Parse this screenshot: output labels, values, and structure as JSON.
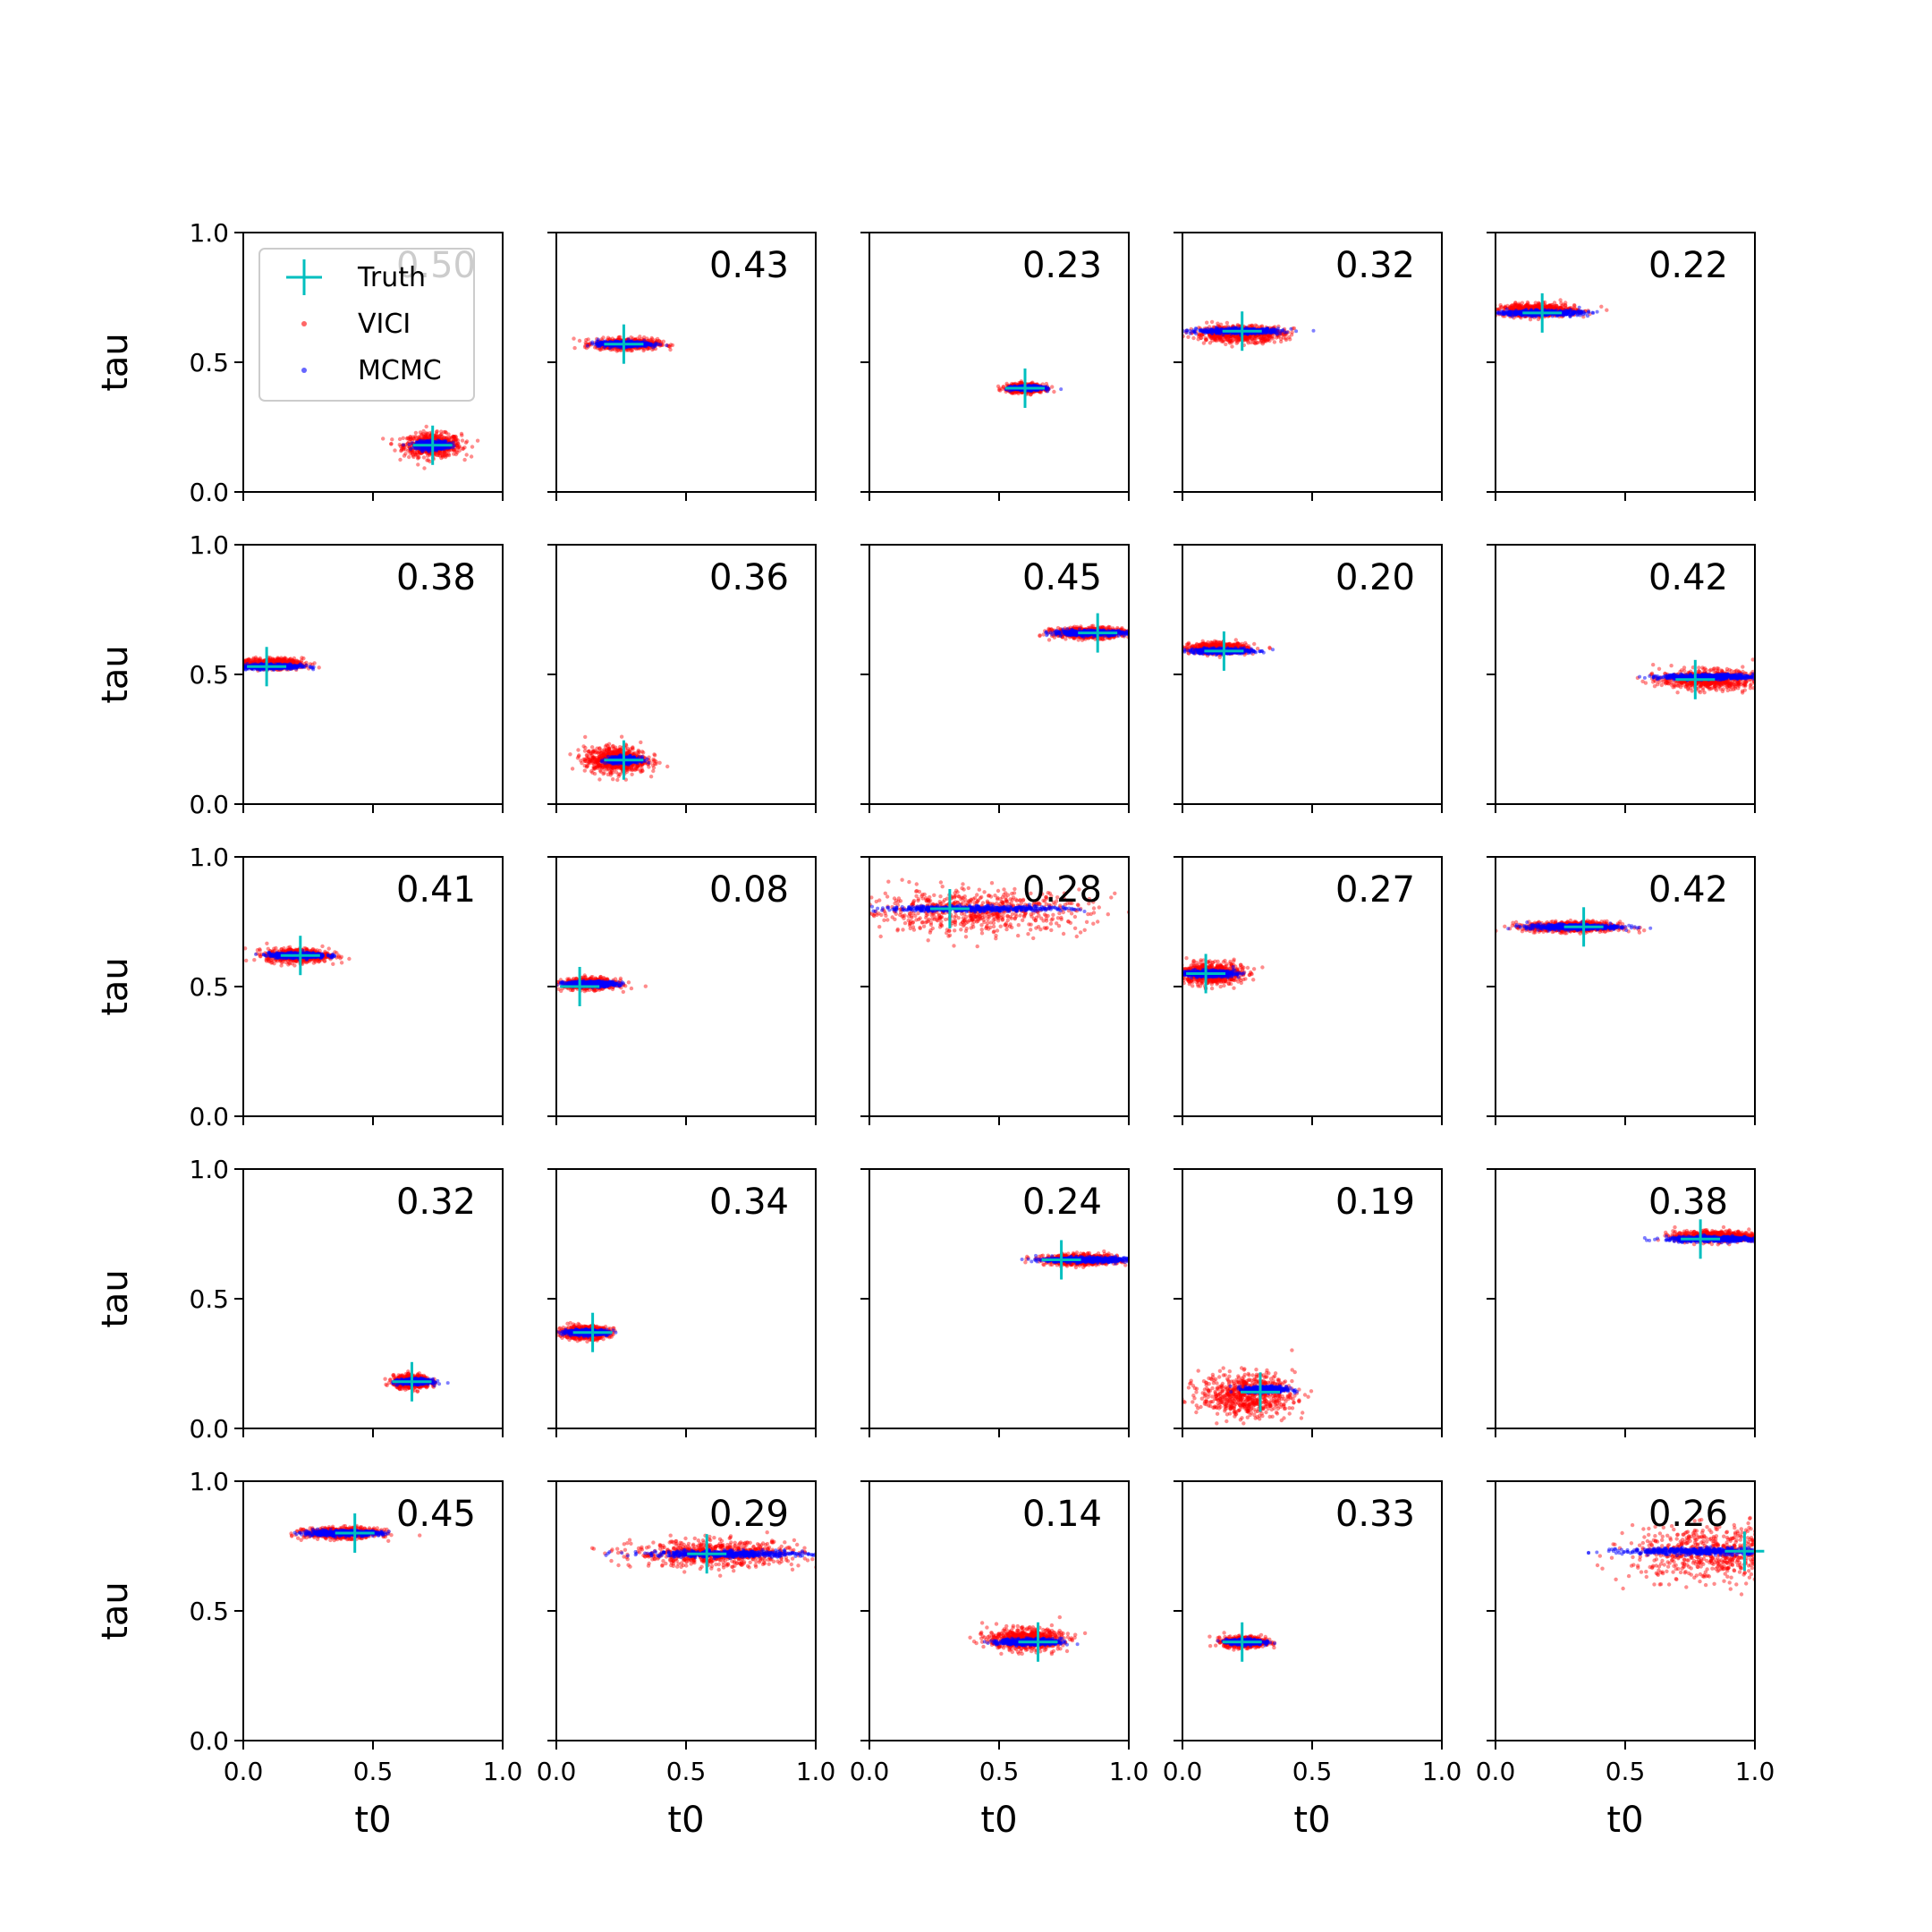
{
  "chart_data": {
    "type": "scatter",
    "layout": {
      "rows": 5,
      "cols": 5
    },
    "xlabel": "t0",
    "ylabel": "tau",
    "xlim": [
      0,
      1
    ],
    "ylim": [
      0,
      1
    ],
    "xticks": [
      "0.0",
      "0.5",
      "1.0"
    ],
    "yticks": [
      "0.0",
      "0.5",
      "1.0"
    ],
    "colors": {
      "truth": "#00bfbf",
      "vici": "#ff0000",
      "mcmc": "#0000ff"
    },
    "legend": {
      "position": "upper-left of first panel",
      "entries": [
        {
          "name": "Truth",
          "marker": "plus",
          "color": "#00bfbf"
        },
        {
          "name": "VICI",
          "marker": "dot",
          "color": "#ff0000"
        },
        {
          "name": "MCMC",
          "marker": "dot",
          "color": "#0000ff"
        }
      ]
    },
    "panels": [
      {
        "score": "0.50",
        "truth": [
          0.73,
          0.18
        ],
        "vici": {
          "center": [
            0.73,
            0.18
          ],
          "spread": [
            0.055,
            0.022
          ]
        },
        "mcmc": {
          "center": [
            0.73,
            0.18
          ],
          "spread": [
            0.03,
            0.008
          ]
        }
      },
      {
        "score": "0.43",
        "truth": [
          0.26,
          0.57
        ],
        "vici": {
          "center": [
            0.27,
            0.57
          ],
          "spread": [
            0.06,
            0.01
          ]
        },
        "mcmc": {
          "center": [
            0.26,
            0.57
          ],
          "spread": [
            0.05,
            0.005
          ]
        }
      },
      {
        "score": "0.23",
        "truth": [
          0.6,
          0.4
        ],
        "vici": {
          "center": [
            0.6,
            0.4
          ],
          "spread": [
            0.035,
            0.008
          ]
        },
        "mcmc": {
          "center": [
            0.61,
            0.4
          ],
          "spread": [
            0.03,
            0.004
          ]
        }
      },
      {
        "score": "0.32",
        "truth": [
          0.23,
          0.62
        ],
        "vici": {
          "center": [
            0.22,
            0.61
          ],
          "spread": [
            0.085,
            0.015
          ]
        },
        "mcmc": {
          "center": [
            0.22,
            0.62
          ],
          "spread": [
            0.08,
            0.005
          ]
        }
      },
      {
        "score": "0.22",
        "truth": [
          0.18,
          0.69
        ],
        "vici": {
          "center": [
            0.16,
            0.7
          ],
          "spread": [
            0.075,
            0.012
          ]
        },
        "mcmc": {
          "center": [
            0.17,
            0.69
          ],
          "spread": [
            0.08,
            0.005
          ]
        }
      },
      {
        "score": "0.38",
        "truth": [
          0.09,
          0.53
        ],
        "vici": {
          "center": [
            0.11,
            0.54
          ],
          "spread": [
            0.06,
            0.01
          ]
        },
        "mcmc": {
          "center": [
            0.1,
            0.53
          ],
          "spread": [
            0.06,
            0.005
          ]
        }
      },
      {
        "score": "0.36",
        "truth": [
          0.26,
          0.17
        ],
        "vici": {
          "center": [
            0.23,
            0.17
          ],
          "spread": [
            0.06,
            0.025
          ]
        },
        "mcmc": {
          "center": [
            0.26,
            0.17
          ],
          "spread": [
            0.03,
            0.006
          ]
        }
      },
      {
        "score": "0.45",
        "truth": [
          0.88,
          0.66
        ],
        "vici": {
          "center": [
            0.85,
            0.66
          ],
          "spread": [
            0.07,
            0.01
          ]
        },
        "mcmc": {
          "center": [
            0.85,
            0.66
          ],
          "spread": [
            0.07,
            0.005
          ]
        }
      },
      {
        "score": "0.20",
        "truth": [
          0.16,
          0.59
        ],
        "vici": {
          "center": [
            0.14,
            0.6
          ],
          "spread": [
            0.055,
            0.01
          ]
        },
        "mcmc": {
          "center": [
            0.15,
            0.59
          ],
          "spread": [
            0.06,
            0.005
          ]
        }
      },
      {
        "score": "0.42",
        "truth": [
          0.77,
          0.48
        ],
        "vici": {
          "center": [
            0.82,
            0.48
          ],
          "spread": [
            0.09,
            0.018
          ]
        },
        "mcmc": {
          "center": [
            0.82,
            0.49
          ],
          "spread": [
            0.09,
            0.005
          ]
        }
      },
      {
        "score": "0.41",
        "truth": [
          0.22,
          0.62
        ],
        "vici": {
          "center": [
            0.21,
            0.62
          ],
          "spread": [
            0.06,
            0.013
          ]
        },
        "mcmc": {
          "center": [
            0.21,
            0.62
          ],
          "spread": [
            0.055,
            0.005
          ]
        }
      },
      {
        "score": "0.08",
        "truth": [
          0.09,
          0.5
        ],
        "vici": {
          "center": [
            0.13,
            0.51
          ],
          "spread": [
            0.05,
            0.01
          ]
        },
        "mcmc": {
          "center": [
            0.13,
            0.51
          ],
          "spread": [
            0.05,
            0.005
          ]
        }
      },
      {
        "score": "0.28",
        "truth": [
          0.31,
          0.8
        ],
        "vici": {
          "center": [
            0.4,
            0.79
          ],
          "spread": [
            0.22,
            0.04
          ]
        },
        "mcmc": {
          "center": [
            0.4,
            0.8
          ],
          "spread": [
            0.18,
            0.005
          ]
        }
      },
      {
        "score": "0.27",
        "truth": [
          0.09,
          0.55
        ],
        "vici": {
          "center": [
            0.11,
            0.55
          ],
          "spread": [
            0.06,
            0.02
          ]
        },
        "mcmc": {
          "center": [
            0.1,
            0.55
          ],
          "spread": [
            0.05,
            0.006
          ]
        }
      },
      {
        "score": "0.42",
        "truth": [
          0.34,
          0.73
        ],
        "vici": {
          "center": [
            0.3,
            0.73
          ],
          "spread": [
            0.09,
            0.01
          ]
        },
        "mcmc": {
          "center": [
            0.3,
            0.73
          ],
          "spread": [
            0.09,
            0.005
          ]
        }
      },
      {
        "score": "0.32",
        "truth": [
          0.65,
          0.18
        ],
        "vici": {
          "center": [
            0.65,
            0.18
          ],
          "spread": [
            0.035,
            0.012
          ]
        },
        "mcmc": {
          "center": [
            0.66,
            0.18
          ],
          "spread": [
            0.03,
            0.005
          ]
        }
      },
      {
        "score": "0.34",
        "truth": [
          0.14,
          0.37
        ],
        "vici": {
          "center": [
            0.11,
            0.37
          ],
          "spread": [
            0.045,
            0.012
          ]
        },
        "mcmc": {
          "center": [
            0.12,
            0.37
          ],
          "spread": [
            0.04,
            0.005
          ]
        }
      },
      {
        "score": "0.24",
        "truth": [
          0.74,
          0.65
        ],
        "vici": {
          "center": [
            0.82,
            0.65
          ],
          "spread": [
            0.07,
            0.01
          ]
        },
        "mcmc": {
          "center": [
            0.83,
            0.65
          ],
          "spread": [
            0.08,
            0.005
          ]
        }
      },
      {
        "score": "0.19",
        "truth": [
          0.3,
          0.14
        ],
        "vici": {
          "center": [
            0.25,
            0.13
          ],
          "spread": [
            0.09,
            0.04
          ]
        },
        "mcmc": {
          "center": [
            0.32,
            0.15
          ],
          "spread": [
            0.04,
            0.006
          ]
        }
      },
      {
        "score": "0.38",
        "truth": [
          0.79,
          0.73
        ],
        "vici": {
          "center": [
            0.85,
            0.74
          ],
          "spread": [
            0.08,
            0.01
          ]
        },
        "mcmc": {
          "center": [
            0.84,
            0.73
          ],
          "spread": [
            0.09,
            0.005
          ]
        }
      },
      {
        "score": "0.45",
        "truth": [
          0.43,
          0.8
        ],
        "vici": {
          "center": [
            0.38,
            0.8
          ],
          "spread": [
            0.07,
            0.01
          ]
        },
        "mcmc": {
          "center": [
            0.38,
            0.8
          ],
          "spread": [
            0.075,
            0.005
          ]
        }
      },
      {
        "score": "0.29",
        "truth": [
          0.58,
          0.72
        ],
        "vici": {
          "center": [
            0.62,
            0.72
          ],
          "spread": [
            0.16,
            0.025
          ]
        },
        "mcmc": {
          "center": [
            0.66,
            0.72
          ],
          "spread": [
            0.15,
            0.006
          ]
        }
      },
      {
        "score": "0.14",
        "truth": [
          0.65,
          0.38
        ],
        "vici": {
          "center": [
            0.6,
            0.39
          ],
          "spread": [
            0.07,
            0.02
          ]
        },
        "mcmc": {
          "center": [
            0.62,
            0.38
          ],
          "spread": [
            0.06,
            0.006
          ]
        }
      },
      {
        "score": "0.33",
        "truth": [
          0.23,
          0.38
        ],
        "vici": {
          "center": [
            0.24,
            0.38
          ],
          "spread": [
            0.04,
            0.01
          ]
        },
        "mcmc": {
          "center": [
            0.24,
            0.38
          ],
          "spread": [
            0.035,
            0.005
          ]
        }
      },
      {
        "score": "0.26",
        "truth": [
          0.96,
          0.73
        ],
        "vici": {
          "center": [
            0.85,
            0.72
          ],
          "spread": [
            0.16,
            0.05
          ]
        },
        "mcmc": {
          "center": [
            0.8,
            0.73
          ],
          "spread": [
            0.16,
            0.006
          ]
        }
      }
    ]
  }
}
